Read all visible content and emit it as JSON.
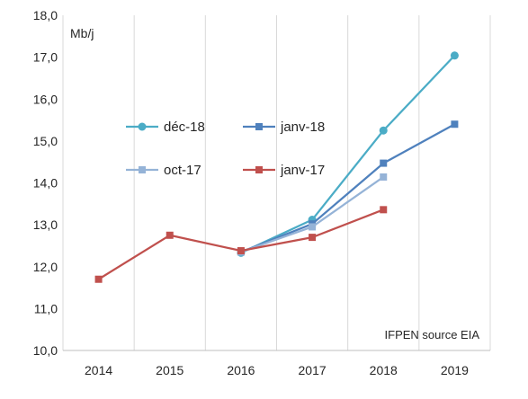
{
  "chart_data": {
    "type": "line",
    "title": "",
    "xlabel": "",
    "ylabel": "",
    "unit_label": "Mb/j",
    "source_note": "IFPEN source EIA",
    "ylim": [
      10.0,
      18.0
    ],
    "y_ticks": [
      "10,0",
      "11,0",
      "12,0",
      "13,0",
      "14,0",
      "15,0",
      "16,0",
      "17,0",
      "18,0"
    ],
    "y_tick_values": [
      10,
      11,
      12,
      13,
      14,
      15,
      16,
      17,
      18
    ],
    "categories": [
      "2014",
      "2015",
      "2016",
      "2017",
      "2018",
      "2019"
    ],
    "grid": "vertical",
    "legend_position": "inside-center",
    "series": [
      {
        "name": "déc-18",
        "color": "#4BACC6",
        "marker": "circle",
        "values": [
          null,
          null,
          12.33,
          13.12,
          15.25,
          17.04
        ]
      },
      {
        "name": "janv-18",
        "color": "#4F81BD",
        "marker": "square",
        "values": [
          null,
          null,
          12.35,
          13.02,
          14.47,
          15.4
        ]
      },
      {
        "name": "oct-17",
        "color": "#95B3D7",
        "marker": "square",
        "values": [
          null,
          null,
          12.35,
          12.95,
          14.14,
          null
        ]
      },
      {
        "name": "janv-17",
        "color": "#C0504D",
        "marker": "square",
        "values": [
          11.7,
          12.75,
          12.38,
          12.7,
          13.36,
          null
        ]
      }
    ]
  }
}
